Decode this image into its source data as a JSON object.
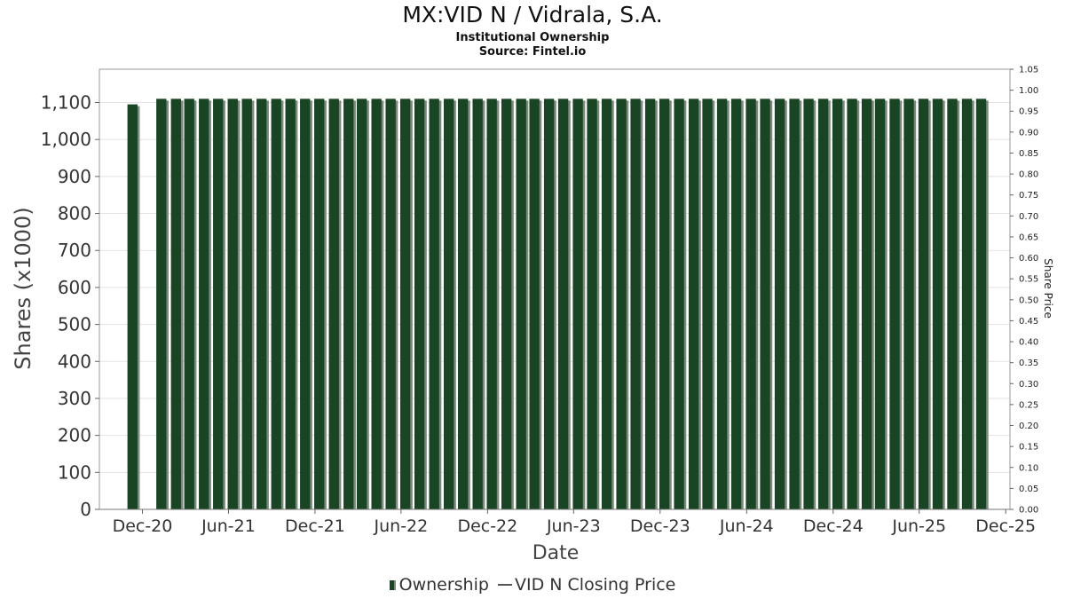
{
  "chart_data": {
    "type": "bar",
    "title": "MX:VID N / Vidrala, S.A.",
    "subtitle": "Institutional Ownership",
    "source": "Source: Fintel.io",
    "xlabel": "Date",
    "ylabel": "Shares (x1000)",
    "y2label": "Share Price",
    "ylim": [
      0,
      1190
    ],
    "y2lim": [
      0,
      1.05
    ],
    "yticks": [
      0,
      100,
      200,
      300,
      400,
      500,
      600,
      700,
      800,
      900,
      1000,
      1100
    ],
    "yticklabels": [
      "0",
      "100",
      "200",
      "300",
      "400",
      "500",
      "600",
      "700",
      "800",
      "900",
      "1,000",
      "1,100"
    ],
    "y2ticks": [
      0.0,
      0.05,
      0.1,
      0.15,
      0.2,
      0.25,
      0.3,
      0.35,
      0.4,
      0.45,
      0.5,
      0.55,
      0.6,
      0.65,
      0.7,
      0.75,
      0.8,
      0.85,
      0.9,
      0.95,
      1.0,
      1.05
    ],
    "y2ticklabels": [
      "0.00",
      "0.05",
      "0.10",
      "0.15",
      "0.20",
      "0.25",
      "0.30",
      "0.35",
      "0.40",
      "0.45",
      "0.50",
      "0.55",
      "0.60",
      "0.65",
      "0.70",
      "0.75",
      "0.80",
      "0.85",
      "0.90",
      "0.95",
      "1.00",
      "1.05"
    ],
    "xlim": [
      "2020-09-01",
      "2025-12-10"
    ],
    "xticks": [
      "2020-12-01",
      "2021-06-01",
      "2021-12-01",
      "2022-06-01",
      "2022-12-01",
      "2023-06-01",
      "2023-12-01",
      "2024-06-01",
      "2024-12-01",
      "2025-06-01",
      "2025-12-01"
    ],
    "xticklabels": [
      "Dec-20",
      "Jun-21",
      "Dec-21",
      "Jun-22",
      "Dec-22",
      "Jun-23",
      "Dec-23",
      "Jun-24",
      "Dec-24",
      "Jun-25",
      "Dec-25"
    ],
    "bar_start": "2020-11-10",
    "bar_gap_after_first_months": 2,
    "bar_period_months": 1,
    "series": [
      {
        "name": "Ownership",
        "color": "#1a4524",
        "values": [
          1095,
          1110,
          1110,
          1110,
          1110,
          1110,
          1110,
          1110,
          1110,
          1110,
          1110,
          1110,
          1110,
          1110,
          1110,
          1110,
          1110,
          1110,
          1110,
          1110,
          1110,
          1110,
          1110,
          1110,
          1110,
          1110,
          1110,
          1110,
          1110,
          1110,
          1110,
          1110,
          1110,
          1110,
          1110,
          1110,
          1110,
          1110,
          1110,
          1110,
          1110,
          1110,
          1110,
          1110,
          1110,
          1110,
          1110,
          1110,
          1110,
          1110,
          1110,
          1110,
          1110,
          1110,
          1110,
          1110,
          1110,
          1110,
          1110
        ]
      },
      {
        "name": "VID N Closing Price",
        "color": "#555555",
        "values": []
      }
    ],
    "grid": true,
    "legend_position": "bottom-center"
  }
}
